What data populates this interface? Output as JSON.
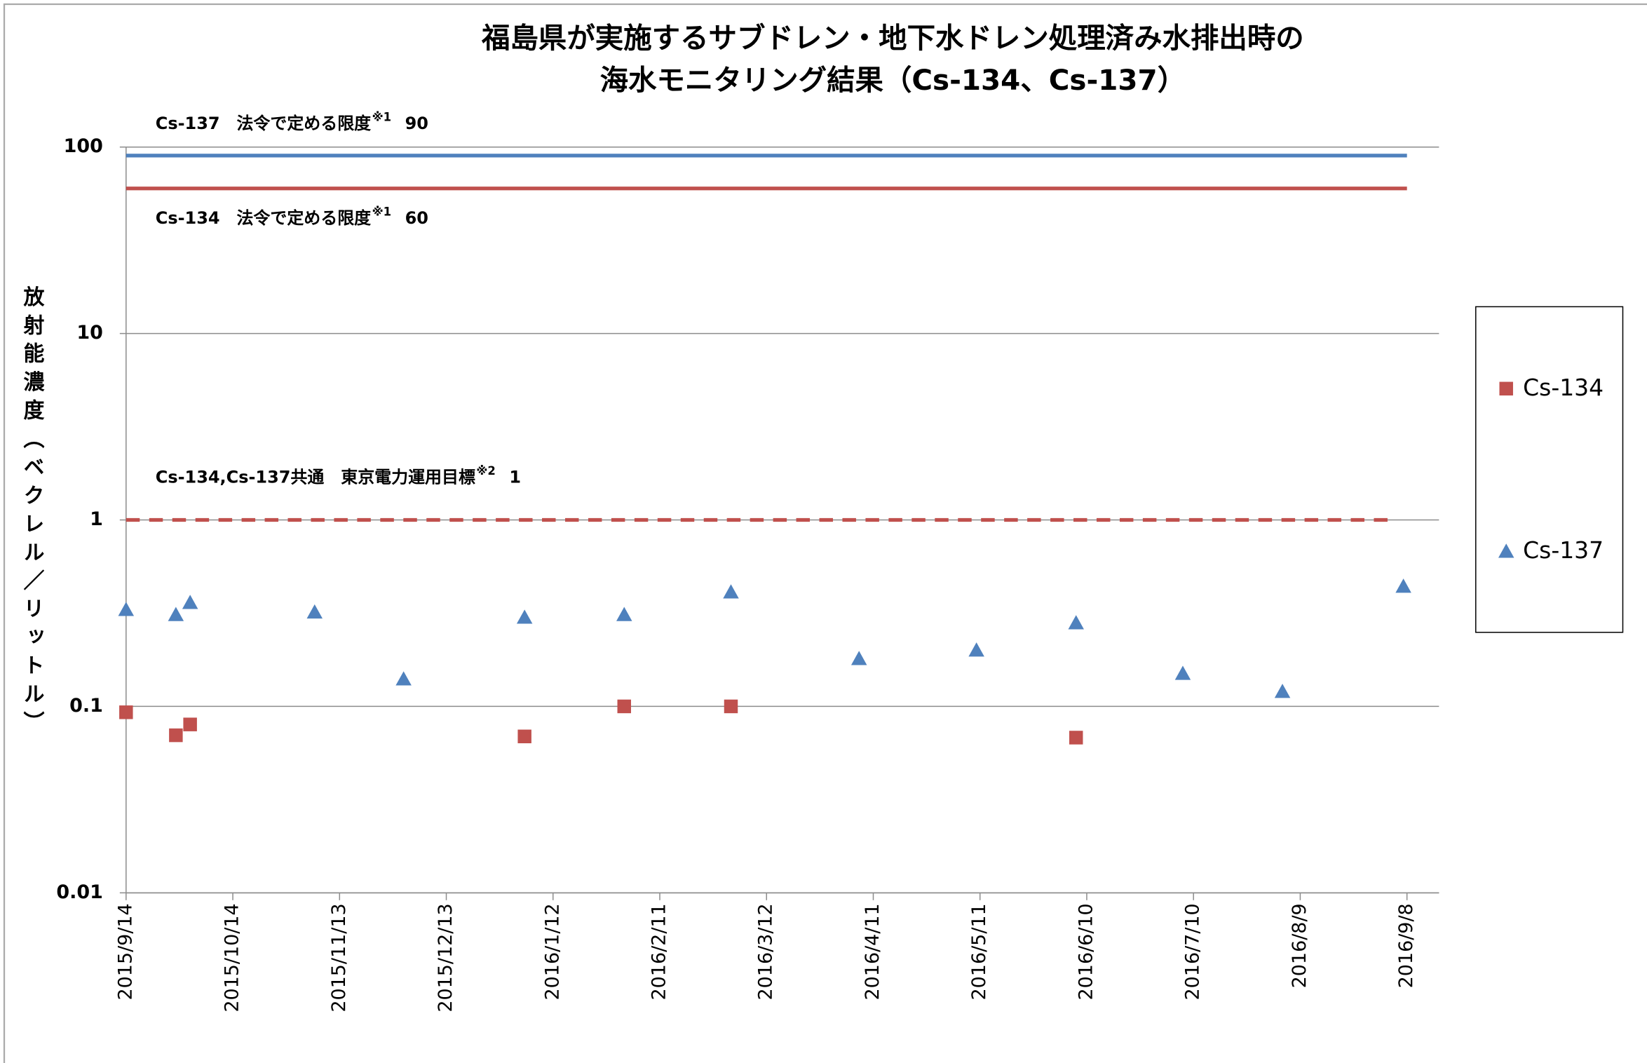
{
  "chart_data": {
    "type": "scatter",
    "title": [
      "福島県が実施するサブドレン・地下水ドレン処理済み水排出時の",
      "海水モニタリング結果（Cs-134、Cs-137）"
    ],
    "y_label": "放射能濃度（ベクレル／リットル）",
    "log_scale_y": true,
    "grid": true,
    "xlim": [
      "2015/9/14",
      "2016/9/17"
    ],
    "xticks": [
      "2015/9/14",
      "2015/10/14",
      "2015/11/13",
      "2015/12/13",
      "2016/1/12",
      "2016/2/11",
      "2016/3/12",
      "2016/4/11",
      "2016/5/11",
      "2016/6/10",
      "2016/7/10",
      "2016/8/9",
      "2016/9/8"
    ],
    "ylim": [
      0.01,
      100
    ],
    "yticks": [
      0.01,
      0.1,
      1,
      10,
      100
    ],
    "legend": "right",
    "reference_lines": [
      {
        "label": "Cs-137　法令で定める限度",
        "note": "※1",
        "value": 90,
        "color": "#4f81bd",
        "dashed": false
      },
      {
        "label": "Cs-134　法令で定める限度",
        "note": "※1",
        "value": 60,
        "color": "#c0504d",
        "dashed": false
      },
      {
        "label": "Cs-134,Cs-137共通　東京電力運用目標",
        "note": "※2",
        "value": 1,
        "color": "#c0504d",
        "dashed": true
      }
    ],
    "series": [
      {
        "name": "Cs-134",
        "color": "#c0504d",
        "marker": "square",
        "x": [
          "2015/9/14",
          "2015/9/28",
          "2015/10/2",
          "2016/1/4",
          "2016/2/1",
          "2016/3/2",
          "2016/6/7"
        ],
        "values": [
          0.093,
          0.07,
          0.08,
          0.069,
          0.1,
          0.1,
          0.068
        ]
      },
      {
        "name": "Cs-137",
        "color": "#4f81bd",
        "marker": "triangle",
        "x": [
          "2015/9/14",
          "2015/9/28",
          "2015/10/2",
          "2015/11/6",
          "2015/12/1",
          "2016/1/4",
          "2016/2/1",
          "2016/3/2",
          "2016/4/7",
          "2016/5/10",
          "2016/6/7",
          "2016/7/7",
          "2016/8/4",
          "2016/9/7"
        ],
        "values": [
          0.33,
          0.31,
          0.36,
          0.32,
          0.14,
          0.3,
          0.31,
          0.41,
          0.18,
          0.2,
          0.28,
          0.15,
          0.12,
          0.44
        ]
      }
    ]
  }
}
